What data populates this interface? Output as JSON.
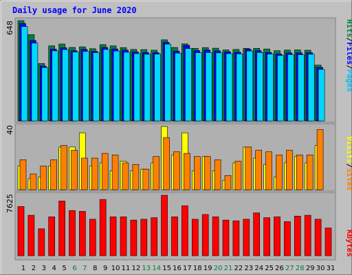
{
  "title": "Daily usage for June 2020",
  "chart_data": [
    {
      "type": "bar",
      "panel": "hits-files-pages",
      "ylim": [
        0,
        648
      ],
      "max_label": "648",
      "categories": [
        "1",
        "2",
        "3",
        "4",
        "5",
        "6",
        "7",
        "8",
        "9",
        "10",
        "11",
        "12",
        "13",
        "14",
        "15",
        "16",
        "17",
        "18",
        "19",
        "20",
        "21",
        "22",
        "23",
        "24",
        "25",
        "26",
        "27",
        "28",
        "29",
        "30",
        "31"
      ],
      "series": [
        {
          "name": "Hits",
          "color": "#008040",
          "values": [
            648,
            558,
            371,
            485,
            497,
            475,
            479,
            467,
            493,
            485,
            474,
            462,
            461,
            457,
            524,
            475,
            498,
            469,
            474,
            470,
            459,
            462,
            469,
            469,
            465,
            454,
            458,
            459,
            457,
            361,
            null
          ]
        },
        {
          "name": "Files",
          "color": "#0000ff",
          "values": [
            630,
            520,
            355,
            464,
            473,
            454,
            463,
            450,
            475,
            465,
            458,
            446,
            442,
            441,
            508,
            452,
            488,
            454,
            458,
            453,
            447,
            444,
            463,
            454,
            443,
            433,
            440,
            440,
            441,
            346,
            null
          ]
        },
        {
          "name": "Pages",
          "color": "#00d8ff",
          "values": [
            610,
            503,
            345,
            453,
            461,
            445,
            449,
            441,
            462,
            452,
            444,
            435,
            431,
            432,
            496,
            438,
            468,
            441,
            442,
            440,
            435,
            433,
            452,
            442,
            432,
            423,
            429,
            428,
            431,
            333,
            null
          ]
        }
      ]
    },
    {
      "type": "bar",
      "panel": "visits-sites",
      "ylim": [
        0,
        40
      ],
      "max_label": "40",
      "categories": [
        "1",
        "2",
        "3",
        "4",
        "5",
        "6",
        "7",
        "8",
        "9",
        "10",
        "11",
        "12",
        "13",
        "14",
        "15",
        "16",
        "17",
        "18",
        "19",
        "20",
        "21",
        "22",
        "23",
        "24",
        "25",
        "26",
        "27",
        "28",
        "29",
        "30",
        "31"
      ],
      "series": [
        {
          "name": "Visits",
          "color": "#ffff00",
          "values": [
            15,
            7,
            8,
            15,
            27,
            27,
            36,
            15,
            17,
            12,
            18,
            12,
            13,
            17,
            40,
            22,
            36,
            12,
            21,
            12,
            6,
            17,
            27,
            20,
            16,
            8,
            17,
            21,
            17,
            28,
            null
          ]
        },
        {
          "name": "Sites",
          "color": "#ff8000",
          "values": [
            19,
            10,
            15,
            19,
            28,
            25,
            20,
            20,
            23,
            22,
            17,
            16,
            13,
            21,
            33,
            24,
            23,
            21,
            21,
            19,
            9,
            18,
            27,
            25,
            24,
            22,
            25,
            22,
            22,
            38,
            null
          ]
        }
      ]
    },
    {
      "type": "bar",
      "panel": "kbytes",
      "ylim": [
        0,
        7625
      ],
      "max_label": "7625",
      "categories": [
        "1",
        "2",
        "3",
        "4",
        "5",
        "6",
        "7",
        "8",
        "9",
        "10",
        "11",
        "12",
        "13",
        "14",
        "15",
        "16",
        "17",
        "18",
        "19",
        "20",
        "21",
        "22",
        "23",
        "24",
        "25",
        "26",
        "27",
        "28",
        "29",
        "30",
        "31"
      ],
      "series": [
        {
          "name": "KBytes",
          "color": "#ff0000",
          "values": [
            6200,
            5100,
            3400,
            4900,
            6900,
            5700,
            5600,
            4600,
            7100,
            4900,
            4900,
            4500,
            4600,
            4800,
            7625,
            4900,
            6300,
            4600,
            5200,
            4900,
            4500,
            4400,
            4600,
            5400,
            4800,
            4900,
            4300,
            5000,
            5100,
            4600,
            3500
          ]
        }
      ]
    }
  ],
  "legend_top": {
    "hits": "Hits",
    "files": "Files",
    "pages": "Pages",
    "sep": "/"
  },
  "legend_mid": {
    "visits": "Visits",
    "sites": "Sites",
    "sep": "/"
  },
  "legend_bot": {
    "kbytes": "KBytes"
  },
  "weekend_days": [
    6,
    7,
    13,
    14,
    20,
    21,
    27,
    28
  ],
  "colors": {
    "background": "#c0c0c0",
    "plot_bg": "#b0b0b0",
    "title": "#0000ff",
    "weekend_label": "#008040",
    "weekday_label": "#000000"
  }
}
